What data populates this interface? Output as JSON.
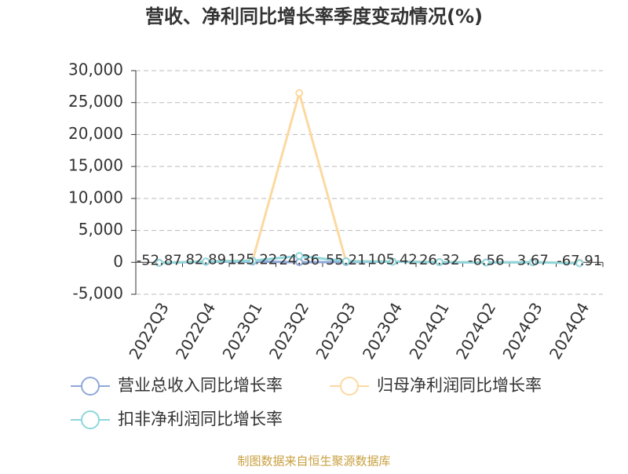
{
  "chart_data": {
    "type": "line",
    "title": "营收、净利同比增长率季度变动情况(%)",
    "source": "制图数据来自恒生聚源数据库",
    "categories": [
      "2022Q3",
      "2022Q4",
      "2023Q1",
      "2023Q2",
      "2023Q3",
      "2023Q4",
      "2024Q1",
      "2024Q2",
      "2024Q3",
      "2024Q4"
    ],
    "series": [
      {
        "name": "营业总收入同比增长率",
        "color": "#8fa8d8",
        "values": [
          -52.87,
          82.89,
          125.22,
          24.36,
          55.21,
          105.42,
          26.32,
          -6.56,
          3.67,
          -67.91
        ]
      },
      {
        "name": "归母净利润同比增长率",
        "color": "#fcd9a0",
        "values": [
          -80,
          150,
          300,
          26500,
          200,
          120,
          60,
          -20,
          30,
          -90
        ]
      },
      {
        "name": "扣非净利润同比增长率",
        "color": "#8fd6dc",
        "values": [
          -100,
          120,
          250,
          1000,
          180,
          100,
          40,
          -30,
          20,
          -150
        ]
      }
    ],
    "ylim": [
      -5000,
      30000
    ],
    "yticks": [
      {
        "value": -5000,
        "label": "-5,000"
      },
      0,
      {
        "value": 5000,
        "label": "5,000"
      },
      {
        "value": 10000,
        "label": "10,000"
      },
      {
        "value": 15000,
        "label": "15,000"
      },
      {
        "value": 20000,
        "label": "20,000"
      },
      {
        "value": 25000,
        "label": "25,000"
      },
      {
        "value": 30000,
        "label": "30,000"
      }
    ],
    "grid": true
  }
}
